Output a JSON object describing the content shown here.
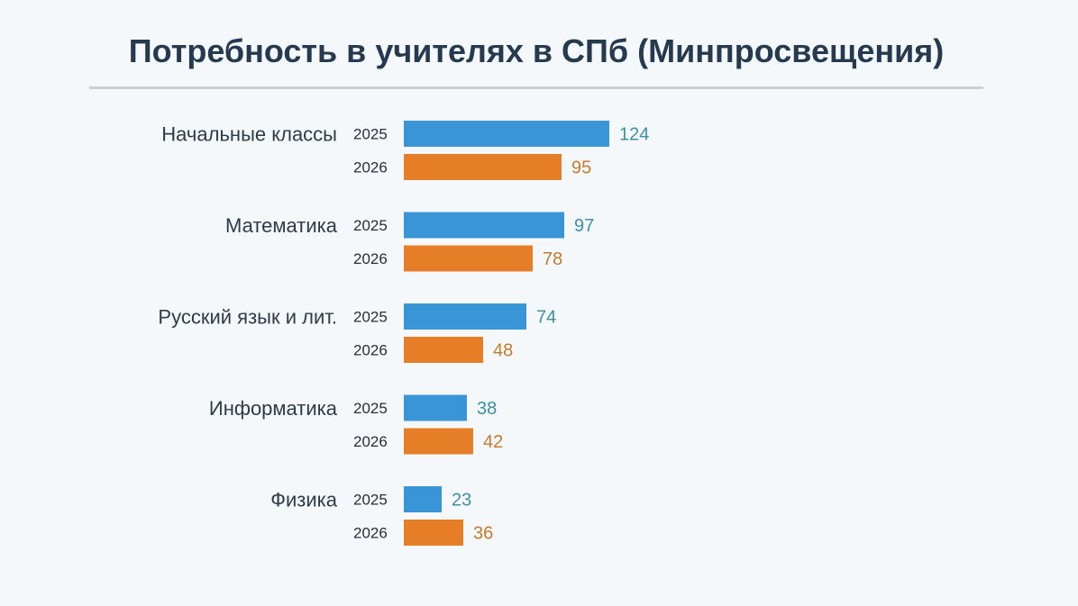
{
  "chart_data": {
    "type": "bar",
    "orientation": "horizontal",
    "title": "Потребность в учителях в СПб (Минпросвещения)",
    "categories": [
      "Начальные классы",
      "Математика",
      "Русский язык и лит.",
      "Информатика",
      "Физика"
    ],
    "series": [
      {
        "name": "2025",
        "values": [
          124,
          97,
          74,
          38,
          23
        ],
        "color": "#3a95d6",
        "label_color": "#3d8fa8"
      },
      {
        "name": "2026",
        "values": [
          95,
          78,
          48,
          42,
          36
        ],
        "color": "#e57e26",
        "label_color": "#c87a2c"
      }
    ],
    "xlim": [
      0,
      124
    ],
    "grid": false,
    "legend": "none"
  }
}
